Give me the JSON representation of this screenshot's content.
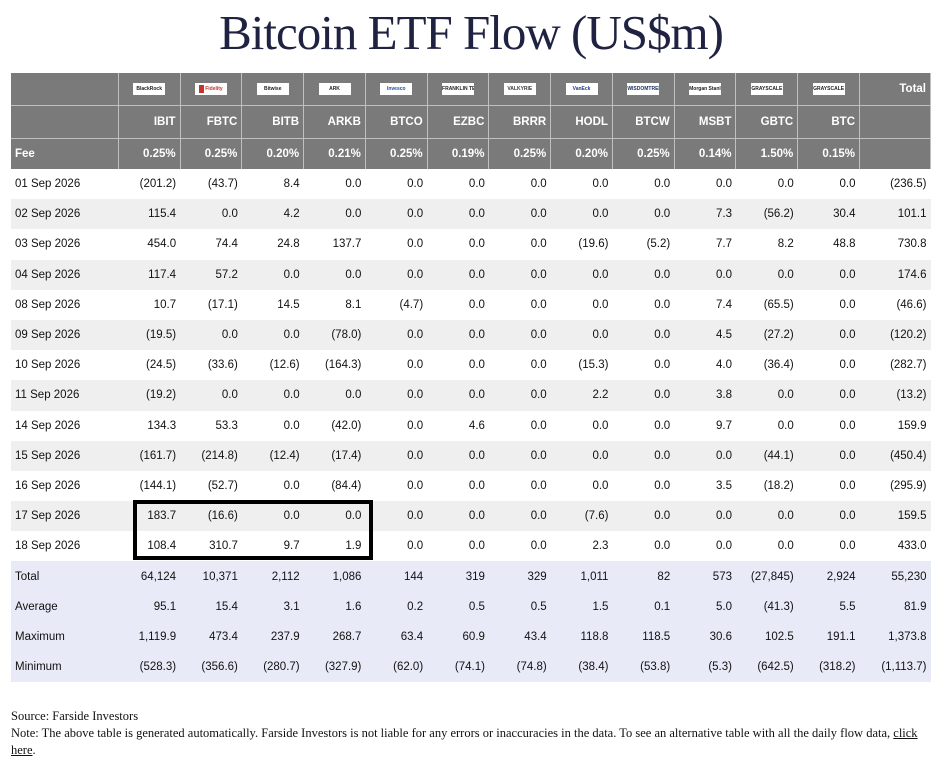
{
  "title": "Bitcoin ETF Flow (US$m)",
  "issuers": [
    "BlackRock",
    "Fidelity",
    "Bitwise",
    "ARK",
    "Invesco",
    "FRANKLIN TEMPLETON",
    "VALKYRIE",
    "VanEck",
    "WISDOMTREE",
    "Morgan Stanley",
    "GRAYSCALE",
    "GRAYSCALE"
  ],
  "total_label": "Total",
  "tickers": [
    "IBIT",
    "FBTC",
    "BITB",
    "ARKB",
    "BTCO",
    "EZBC",
    "BRRR",
    "HODL",
    "BTCW",
    "MSBT",
    "GBTC",
    "BTC"
  ],
  "fee_label": "Fee",
  "fees": [
    "0.25%",
    "0.25%",
    "0.20%",
    "0.21%",
    "0.25%",
    "0.19%",
    "0.25%",
    "0.20%",
    "0.25%",
    "0.14%",
    "1.50%",
    "0.15%"
  ],
  "rows": [
    {
      "date": "01 Sep 2026",
      "values": [
        "(201.2)",
        "(43.7)",
        "8.4",
        "0.0",
        "0.0",
        "0.0",
        "0.0",
        "0.0",
        "0.0",
        "0.0",
        "0.0",
        "0.0"
      ],
      "total": "(236.5)"
    },
    {
      "date": "02 Sep 2026",
      "values": [
        "115.4",
        "0.0",
        "4.2",
        "0.0",
        "0.0",
        "0.0",
        "0.0",
        "0.0",
        "0.0",
        "7.3",
        "(56.2)",
        "30.4"
      ],
      "total": "101.1"
    },
    {
      "date": "03 Sep 2026",
      "values": [
        "454.0",
        "74.4",
        "24.8",
        "137.7",
        "0.0",
        "0.0",
        "0.0",
        "(19.6)",
        "(5.2)",
        "7.7",
        "8.2",
        "48.8"
      ],
      "total": "730.8"
    },
    {
      "date": "04 Sep 2026",
      "values": [
        "117.4",
        "57.2",
        "0.0",
        "0.0",
        "0.0",
        "0.0",
        "0.0",
        "0.0",
        "0.0",
        "0.0",
        "0.0",
        "0.0"
      ],
      "total": "174.6"
    },
    {
      "date": "08 Sep 2026",
      "values": [
        "10.7",
        "(17.1)",
        "14.5",
        "8.1",
        "(4.7)",
        "0.0",
        "0.0",
        "0.0",
        "0.0",
        "7.4",
        "(65.5)",
        "0.0"
      ],
      "total": "(46.6)"
    },
    {
      "date": "09 Sep 2026",
      "values": [
        "(19.5)",
        "0.0",
        "0.0",
        "(78.0)",
        "0.0",
        "0.0",
        "0.0",
        "0.0",
        "0.0",
        "4.5",
        "(27.2)",
        "0.0"
      ],
      "total": "(120.2)"
    },
    {
      "date": "10 Sep 2026",
      "values": [
        "(24.5)",
        "(33.6)",
        "(12.6)",
        "(164.3)",
        "0.0",
        "0.0",
        "0.0",
        "(15.3)",
        "0.0",
        "4.0",
        "(36.4)",
        "0.0"
      ],
      "total": "(282.7)"
    },
    {
      "date": "11 Sep 2026",
      "values": [
        "(19.2)",
        "0.0",
        "0.0",
        "0.0",
        "0.0",
        "0.0",
        "0.0",
        "2.2",
        "0.0",
        "3.8",
        "0.0",
        "0.0"
      ],
      "total": "(13.2)"
    },
    {
      "date": "14 Sep 2026",
      "values": [
        "134.3",
        "53.3",
        "0.0",
        "(42.0)",
        "0.0",
        "4.6",
        "0.0",
        "0.0",
        "0.0",
        "9.7",
        "0.0",
        "0.0"
      ],
      "total": "159.9"
    },
    {
      "date": "15 Sep 2026",
      "values": [
        "(161.7)",
        "(214.8)",
        "(12.4)",
        "(17.4)",
        "0.0",
        "0.0",
        "0.0",
        "0.0",
        "0.0",
        "0.0",
        "(44.1)",
        "0.0"
      ],
      "total": "(450.4)"
    },
    {
      "date": "16 Sep 2026",
      "values": [
        "(144.1)",
        "(52.7)",
        "0.0",
        "(84.4)",
        "0.0",
        "0.0",
        "0.0",
        "0.0",
        "0.0",
        "3.5",
        "(18.2)",
        "0.0"
      ],
      "total": "(295.9)"
    },
    {
      "date": "17 Sep 2026",
      "values": [
        "183.7",
        "(16.6)",
        "0.0",
        "0.0",
        "0.0",
        "0.0",
        "0.0",
        "(7.6)",
        "0.0",
        "0.0",
        "0.0",
        "0.0"
      ],
      "total": "159.5"
    },
    {
      "date": "18 Sep 2026",
      "values": [
        "108.4",
        "310.7",
        "9.7",
        "1.9",
        "0.0",
        "0.0",
        "0.0",
        "2.3",
        "0.0",
        "0.0",
        "0.0",
        "0.0"
      ],
      "total": "433.0"
    }
  ],
  "summary": [
    {
      "label": "Total",
      "values": [
        "64,124",
        "10,371",
        "2,112",
        "1,086",
        "144",
        "319",
        "329",
        "1,011",
        "82",
        "573",
        "(27,845)",
        "2,924"
      ],
      "total": "55,230"
    },
    {
      "label": "Average",
      "values": [
        "95.1",
        "15.4",
        "3.1",
        "1.6",
        "0.2",
        "0.5",
        "0.5",
        "1.5",
        "0.1",
        "5.0",
        "(41.3)",
        "5.5"
      ],
      "total": "81.9"
    },
    {
      "label": "Maximum",
      "values": [
        "1,119.9",
        "473.4",
        "237.9",
        "268.7",
        "63.4",
        "60.9",
        "43.4",
        "118.8",
        "118.5",
        "30.6",
        "102.5",
        "191.1"
      ],
      "total": "1,373.8"
    },
    {
      "label": "Minimum",
      "values": [
        "(528.3)",
        "(356.6)",
        "(280.7)",
        "(327.9)",
        "(62.0)",
        "(74.1)",
        "(74.8)",
        "(38.4)",
        "(53.8)",
        "(5.3)",
        "(642.5)",
        "(318.2)"
      ],
      "total": "(1,113.7)"
    }
  ],
  "footer": {
    "source": "Source: Farside Investors",
    "note": "Note: The above table is generated automatically. Farside Investors is not liable for any errors or inaccuracies in the data. To see an alternative table with all the daily flow data, ",
    "link_text": "click here",
    "end": "."
  },
  "colors": {
    "negative": "#d8301f",
    "zero": "#bbbbbb",
    "header_bg": "#7a7a7a",
    "summary_bg": "#e8ebf7"
  }
}
